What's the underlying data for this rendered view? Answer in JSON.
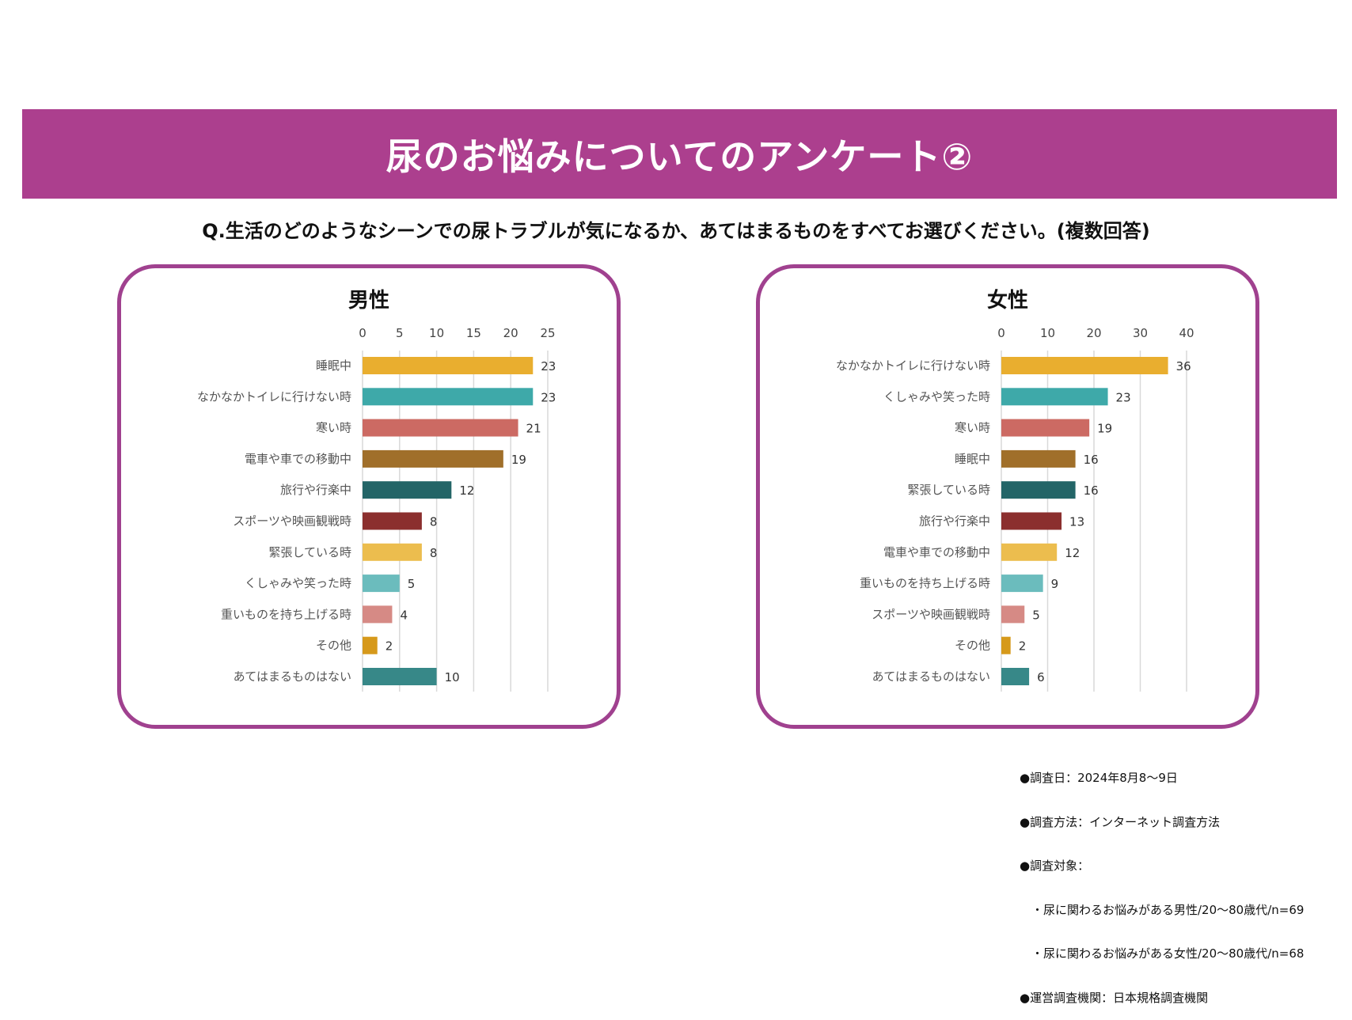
{
  "header": {
    "title": "尿のお悩みについてのアンケート②"
  },
  "question": "Q.生活のどのようなシーンでの尿トラブルが気になるか、あてはまるものをすべてお選びください。(複数回答)",
  "accent_color": "#ac3f8e",
  "chart_data": [
    {
      "type": "bar",
      "orientation": "horizontal",
      "title": "男性",
      "categories": [
        "睡眠中",
        "なかなかトイレに行けない時",
        "寒い時",
        "電車や車での移動中",
        "旅行や行楽中",
        "スポーツや映画観戦時",
        "緊張している時",
        "くしゃみや笑った時",
        "重いものを持ち上げる時",
        "その他",
        "あてはまるものはない"
      ],
      "values": [
        23,
        23,
        21,
        19,
        12,
        8,
        8,
        5,
        4,
        2,
        10
      ],
      "colors": [
        "#e9ae2f",
        "#3ea9a9",
        "#cc6a63",
        "#a06f2a",
        "#236567",
        "#8b2f2e",
        "#ecbd4e",
        "#6bbcbd",
        "#d68a85",
        "#d6991b",
        "#378888"
      ],
      "xlim": [
        0,
        25
      ],
      "ticks": [
        0,
        5,
        10,
        15,
        20,
        25
      ],
      "grid": true,
      "axis_position": "top"
    },
    {
      "type": "bar",
      "orientation": "horizontal",
      "title": "女性",
      "categories": [
        "なかなかトイレに行けない時",
        "くしゃみや笑った時",
        "寒い時",
        "睡眠中",
        "緊張している時",
        "旅行や行楽中",
        "電車や車での移動中",
        "重いものを持ち上げる時",
        "スポーツや映画観戦時",
        "その他",
        "あてはまるものはない"
      ],
      "values": [
        36,
        23,
        19,
        16,
        16,
        13,
        12,
        9,
        5,
        2,
        6
      ],
      "colors": [
        "#e9ae2f",
        "#3ea9a9",
        "#cc6a63",
        "#a06f2a",
        "#236567",
        "#8b2f2e",
        "#ecbd4e",
        "#6bbcbd",
        "#d68a85",
        "#d6991b",
        "#378888"
      ],
      "xlim": [
        0,
        40
      ],
      "ticks": [
        0,
        10,
        20,
        30,
        40
      ],
      "grid": true,
      "axis_position": "top"
    }
  ],
  "footnote": [
    "●調査日：2024年8月8～9日",
    "●調査方法：インターネット調査方法",
    "●調査対象：",
    "　・尿に関わるお悩みがある男性/20～80歳代/n=69",
    "　・尿に関わるお悩みがある女性/20～80歳代/n=68",
    "●運営調査機関：日本規格調査機関"
  ]
}
